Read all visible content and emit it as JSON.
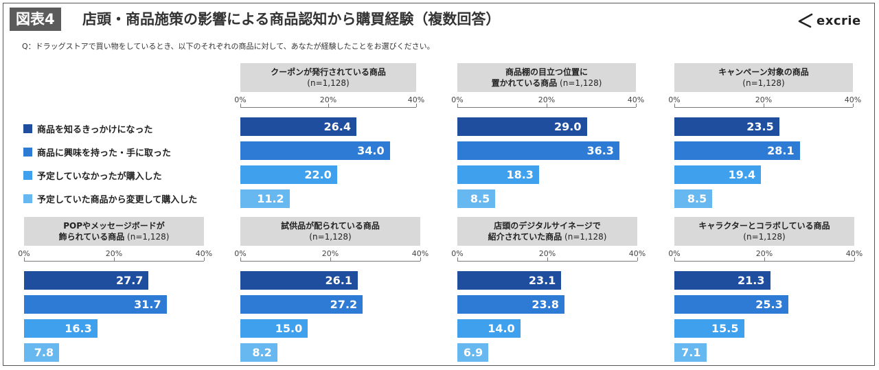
{
  "header": {
    "badge": "図表4",
    "title": "店頭・商品施策の影響による商品認知から購買経験（複数回答）",
    "question": "Q：ドラッグストアで買い物をしているとき、以下のそれぞれの商品に対して、あなたが経験したことをお選びください。",
    "logo_text": "excrie"
  },
  "colors": {
    "series": [
      "#1f4e9e",
      "#2e7bd6",
      "#3fa0ee",
      "#67b8f0"
    ],
    "title_bg": "#d9d9d9",
    "badge_bg": "#5b5b5b"
  },
  "legend": [
    "商品を知るきっかけになった",
    "商品に興味を持った・手に取った",
    "予定していなかったが購入した",
    "予定していた商品から変更して購入した"
  ],
  "chart_data": [
    {
      "type": "bar",
      "orientation": "horizontal",
      "title_lines": [
        "クーポンが発行されている商品"
      ],
      "n_label": "(n=1,128)",
      "xlim": [
        0,
        40
      ],
      "ticks": [
        "0%",
        "20%",
        "40%"
      ],
      "values": [
        26.4,
        34.0,
        22.0,
        11.2
      ],
      "labels": [
        "26.4",
        "34.0",
        "22.0",
        "11.2"
      ]
    },
    {
      "type": "bar",
      "orientation": "horizontal",
      "title_lines": [
        "商品棚の目立つ位置に",
        "置かれている商品"
      ],
      "n_label": "(n=1,128)",
      "xlim": [
        0,
        40
      ],
      "ticks": [
        "0%",
        "20%",
        "40%"
      ],
      "values": [
        29.0,
        36.3,
        18.3,
        8.5
      ],
      "labels": [
        "29.0",
        "36.3",
        "18.3",
        "8.5"
      ]
    },
    {
      "type": "bar",
      "orientation": "horizontal",
      "title_lines": [
        "キャンペーン対象の商品"
      ],
      "n_label": "(n=1,128)",
      "xlim": [
        0,
        40
      ],
      "ticks": [
        "0%",
        "20%",
        "40%"
      ],
      "values": [
        23.5,
        28.1,
        19.4,
        8.5
      ],
      "labels": [
        "23.5",
        "28.1",
        "19.4",
        "8.5"
      ]
    },
    {
      "type": "bar",
      "orientation": "horizontal",
      "title_lines": [
        "POPやメッセージボードが",
        "飾られている商品"
      ],
      "n_label": "(n=1,128)",
      "xlim": [
        0,
        40
      ],
      "ticks": [
        "0%",
        "20%",
        "40%"
      ],
      "values": [
        27.7,
        31.7,
        16.3,
        7.8
      ],
      "labels": [
        "27.7",
        "31.7",
        "16.3",
        "7.8"
      ]
    },
    {
      "type": "bar",
      "orientation": "horizontal",
      "title_lines": [
        "試供品が配られている商品"
      ],
      "n_label": "(n=1,128)",
      "xlim": [
        0,
        40
      ],
      "ticks": [
        "0%",
        "20%",
        "40%"
      ],
      "values": [
        26.1,
        27.2,
        15.0,
        8.2
      ],
      "labels": [
        "26.1",
        "27.2",
        "15.0",
        "8.2"
      ]
    },
    {
      "type": "bar",
      "orientation": "horizontal",
      "title_lines": [
        "店頭のデジタルサイネージで",
        "紹介されていた商品"
      ],
      "n_label": "(n=1,128)",
      "xlim": [
        0,
        40
      ],
      "ticks": [
        "0%",
        "20%",
        "40%"
      ],
      "values": [
        23.1,
        23.8,
        14.0,
        6.9
      ],
      "labels": [
        "23.1",
        "23.8",
        "14.0",
        "6.9"
      ]
    },
    {
      "type": "bar",
      "orientation": "horizontal",
      "title_lines": [
        "キャラクターとコラボしている商品"
      ],
      "n_label": "(n=1,128)",
      "xlim": [
        0,
        40
      ],
      "ticks": [
        "0%",
        "20%",
        "40%"
      ],
      "values": [
        21.3,
        25.3,
        15.5,
        7.1
      ],
      "labels": [
        "21.3",
        "25.3",
        "15.5",
        "7.1"
      ]
    }
  ]
}
